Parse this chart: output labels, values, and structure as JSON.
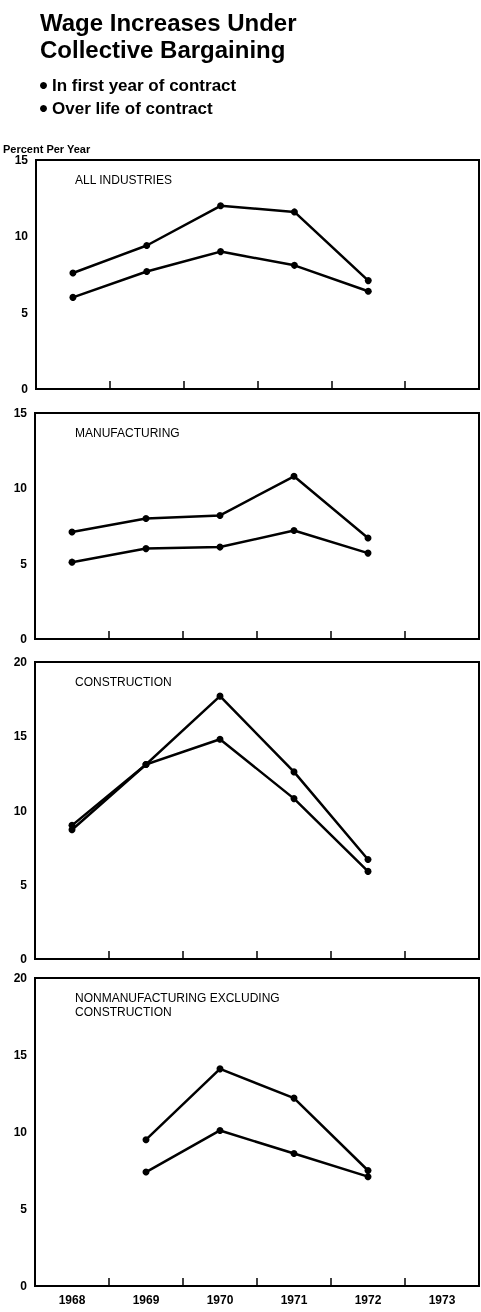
{
  "chart_data": [
    {
      "type": "line",
      "title": "Wage Increases Under Collective Bargaining",
      "subtitle": "ALL INDUSTRIES",
      "ylabel": "Percent Per Year",
      "categories": [
        "1968",
        "1969",
        "1970",
        "1971",
        "1972",
        "1973"
      ],
      "series": [
        {
          "name": "In first year of contract",
          "color": "#000000",
          "values": [
            7.6,
            9.4,
            12.0,
            11.6,
            7.1,
            null
          ]
        },
        {
          "name": "Over life of contract",
          "color": "#000000",
          "values": [
            6.0,
            7.7,
            9.0,
            8.1,
            6.4,
            null
          ]
        }
      ],
      "ylim": [
        0,
        15
      ],
      "yticks": [
        0,
        5,
        10,
        15
      ],
      "legend": "top left",
      "marker": "circle",
      "tick_labels": "y",
      "grid": false
    },
    {
      "type": "line",
      "subtitle": "MANUFACTURING",
      "categories": [
        "1968",
        "1969",
        "1970",
        "1971",
        "1972",
        "1973"
      ],
      "series": [
        {
          "color": "#000000",
          "values": [
            7.1,
            8.0,
            8.2,
            10.8,
            6.7,
            null
          ]
        },
        {
          "color": "#000000",
          "values": [
            5.1,
            6.0,
            6.1,
            7.2,
            5.7,
            null
          ]
        }
      ],
      "ylim": [
        0,
        15
      ],
      "yticks": [
        0,
        5,
        10,
        15
      ],
      "marker": "circle",
      "tick_labels": "y",
      "grid": false
    },
    {
      "type": "line",
      "subtitle": "CONSTRUCTION",
      "categories": [
        "1968",
        "1969",
        "1970",
        "1971",
        "1972",
        "1973"
      ],
      "series": [
        {
          "color": "#000000",
          "values": [
            9.0,
            13.1,
            17.7,
            12.6,
            6.7,
            null
          ]
        },
        {
          "color": "#000000",
          "values": [
            8.7,
            13.1,
            14.8,
            10.8,
            5.9,
            null
          ]
        }
      ],
      "ylim": [
        0,
        20
      ],
      "yticks": [
        0,
        5,
        10,
        15,
        20
      ],
      "marker": "circle",
      "tick_labels": "y",
      "grid": false
    },
    {
      "type": "line",
      "subtitle": "NONMANUFACTURING EXCLUDING CONSTRUCTION",
      "categories": [
        "1968",
        "1969",
        "1970",
        "1971",
        "1972",
        "1973"
      ],
      "series": [
        {
          "color": "#000000",
          "values": [
            null,
            9.5,
            14.1,
            12.2,
            7.5,
            null
          ]
        },
        {
          "color": "#000000",
          "values": [
            null,
            7.4,
            10.1,
            8.6,
            7.1,
            null
          ]
        }
      ],
      "ylim": [
        0,
        20
      ],
      "yticks": [
        0,
        5,
        10,
        15,
        20
      ],
      "marker": "circle",
      "grid": false
    }
  ]
}
